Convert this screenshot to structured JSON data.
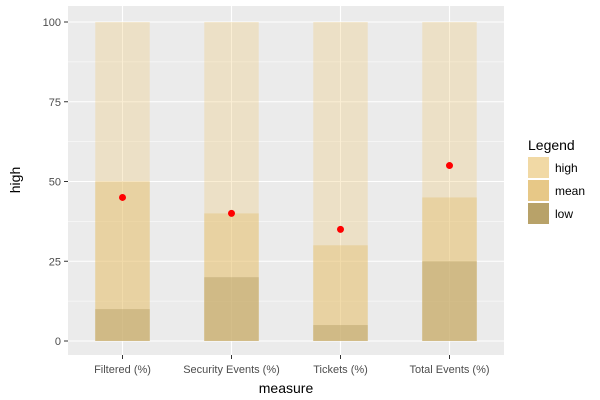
{
  "chart_data": {
    "type": "bar",
    "layout": "overlaid-stacked-ranges-with-points",
    "xlabel": "measure",
    "ylabel": "high",
    "ylim": [
      0,
      100
    ],
    "y_ticks": [
      0,
      25,
      50,
      75,
      100
    ],
    "grid": true,
    "categories": [
      "Filtered (%)",
      "Security Events (%)",
      "Tickets (%)",
      "Total Events (%)"
    ],
    "series": [
      {
        "name": "high",
        "values": [
          100,
          100,
          100,
          100
        ],
        "color": "#f0c872",
        "opacity": 0.3
      },
      {
        "name": "mean",
        "values": [
          50,
          40,
          30,
          45
        ],
        "color": "#e3bd6c",
        "opacity": 0.4
      },
      {
        "name": "low",
        "values": [
          10,
          20,
          5,
          25
        ],
        "color": "#b8a269",
        "opacity": 0.5
      }
    ],
    "points": {
      "values": [
        45,
        40,
        35,
        55
      ],
      "color": "#ff0000"
    },
    "legend": {
      "title": "Legend",
      "position": "right",
      "entries": [
        "high",
        "mean",
        "low"
      ]
    },
    "panel_background": "#ebebeb",
    "grid_color": "#ffffff"
  }
}
